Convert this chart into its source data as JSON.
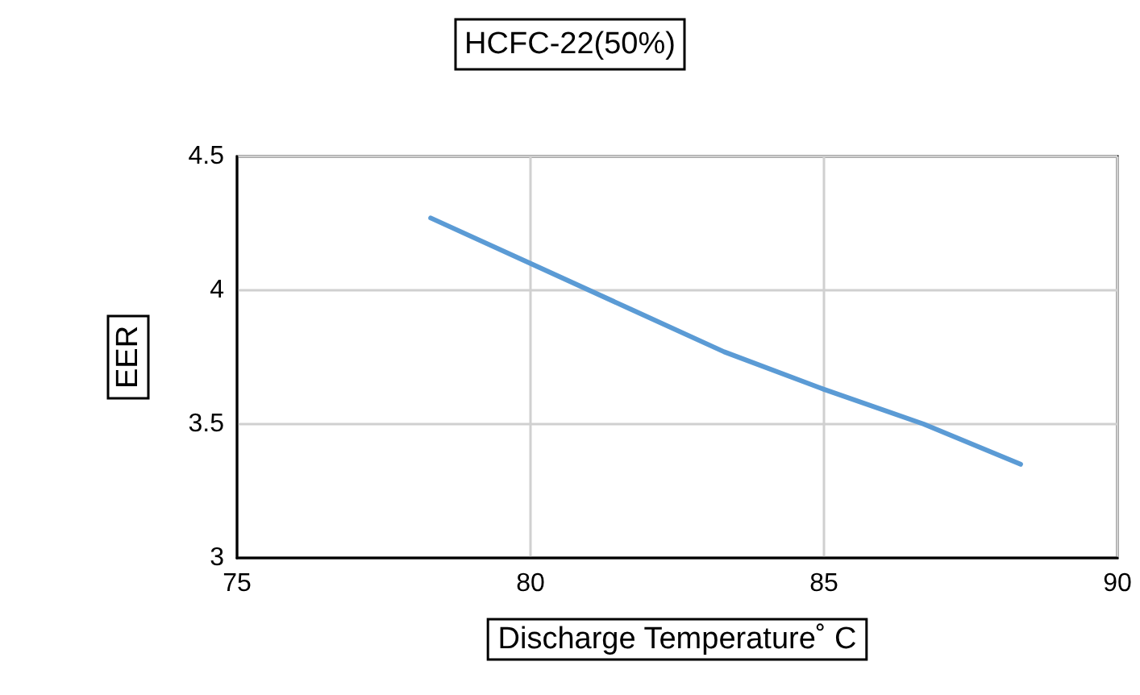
{
  "chart_data": {
    "type": "line",
    "title": "HCFC-22(50%)",
    "xlabel": "Discharge Temperature˚ C",
    "ylabel": "EER",
    "x": [
      78.3,
      80,
      81.7,
      83.3,
      85,
      86.7,
      88.35
    ],
    "series": [
      {
        "color": "#5b9bd5",
        "values": [
          4.27,
          4.1,
          3.93,
          3.77,
          3.63,
          3.5,
          3.35
        ]
      }
    ],
    "xlim": [
      75,
      90
    ],
    "xticks": [
      75,
      80,
      85,
      90
    ],
    "ylim": [
      3,
      4.5
    ],
    "yticks": [
      3,
      3.5,
      4,
      4.5
    ],
    "grid": true,
    "marker": "none",
    "line_style": "solid"
  }
}
